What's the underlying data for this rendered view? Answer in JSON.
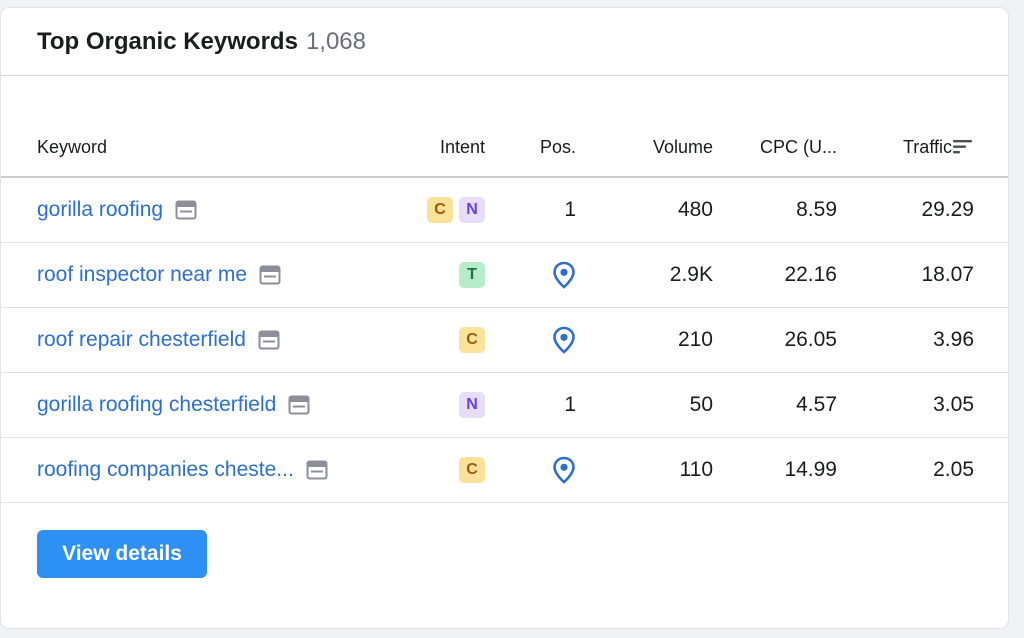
{
  "widget": {
    "title": "Top Organic Keywords",
    "count": "1,068"
  },
  "table": {
    "headers": {
      "keyword": "Keyword",
      "intent": "Intent",
      "position": "Pos.",
      "volume": "Volume",
      "cpc": "CPC (U...",
      "traffic": "Traffic"
    },
    "rows": [
      {
        "keyword": "gorilla roofing",
        "intents": [
          "C",
          "N"
        ],
        "position": "1",
        "position_icon": "",
        "volume": "480",
        "cpc": "8.59",
        "traffic": "29.29"
      },
      {
        "keyword": "roof inspector near me",
        "intents": [
          "T"
        ],
        "position": "",
        "position_icon": "map-pin-icon",
        "volume": "2.9K",
        "cpc": "22.16",
        "traffic": "18.07"
      },
      {
        "keyword": "roof repair chesterfield",
        "intents": [
          "C"
        ],
        "position": "",
        "position_icon": "map-pin-icon",
        "volume": "210",
        "cpc": "26.05",
        "traffic": "3.96"
      },
      {
        "keyword": "gorilla roofing chesterfield",
        "intents": [
          "N"
        ],
        "position": "1",
        "position_icon": "",
        "volume": "50",
        "cpc": "4.57",
        "traffic": "3.05"
      },
      {
        "keyword": "roofing companies cheste...",
        "intents": [
          "C"
        ],
        "position": "",
        "position_icon": "map-pin-icon",
        "volume": "110",
        "cpc": "14.99",
        "traffic": "2.05"
      }
    ]
  },
  "footer": {
    "view_details_label": "View details"
  },
  "icons": {
    "serp": "serp-features-icon",
    "pin": "map-pin-icon",
    "sort": "sort-desc-icon"
  },
  "colors": {
    "link": "#2c6fcc",
    "primary_button": "#2e8ff5",
    "badge_C": "#fbe29a",
    "badge_N": "#e7ddfb",
    "badge_T": "#b7ecc9"
  }
}
